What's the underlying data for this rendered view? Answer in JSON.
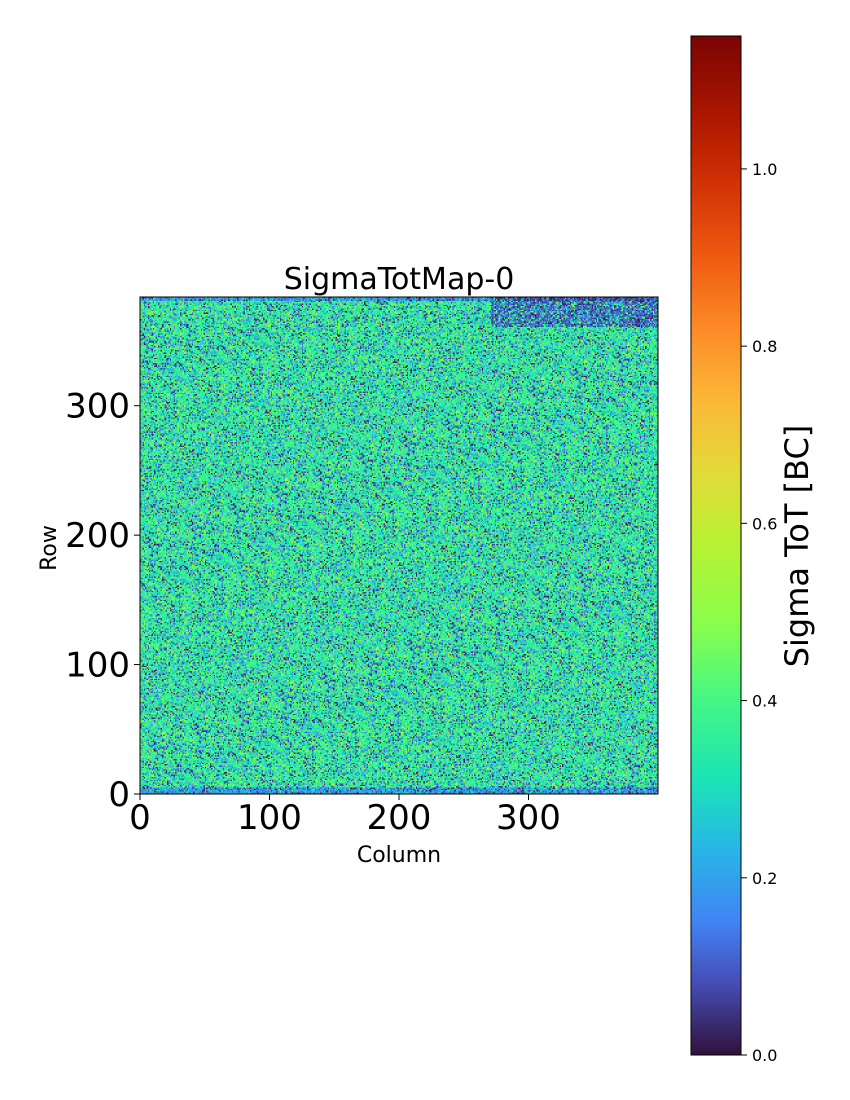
{
  "chart_data": {
    "type": "heatmap",
    "title": "SigmaTotMap-0",
    "xlabel": "Column",
    "ylabel": "Row",
    "xlim": [
      0,
      400
    ],
    "ylim": [
      0,
      384
    ],
    "x_ticks": [
      0,
      100,
      200,
      300
    ],
    "y_ticks": [
      0,
      100,
      200,
      300
    ],
    "x_tick_labels": [
      "0",
      "100",
      "200",
      "300"
    ],
    "y_tick_labels": [
      "0",
      "100",
      "200",
      "300"
    ],
    "colormap": "turbo",
    "colorbar": {
      "label": "Sigma ToT [BC]",
      "range": [
        0.0,
        1.15
      ],
      "ticks": [
        0.0,
        0.2,
        0.4,
        0.6,
        0.8,
        1.0
      ],
      "tick_labels": [
        "0.0",
        "0.2",
        "0.4",
        "0.6",
        "0.8",
        "1.0"
      ]
    },
    "value_distribution": {
      "typical_value": 0.38,
      "common_range": [
        0.0,
        0.55
      ],
      "edge_rows_low": true,
      "top_right_region_low": true
    }
  }
}
